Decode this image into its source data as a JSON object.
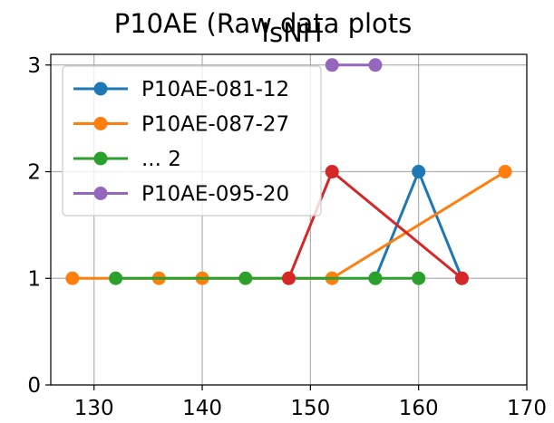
{
  "chart_data": {
    "type": "line",
    "title": "P10AE (Raw data plots",
    "subtitle": "IsNH",
    "xlabel": "",
    "ylabel": "",
    "xlim": [
      126,
      170
    ],
    "ylim": [
      0,
      3.1
    ],
    "xticks": [
      130,
      140,
      150,
      160,
      170
    ],
    "yticks": [
      0,
      1,
      2,
      3
    ],
    "grid": true,
    "legend_position": "upper-left",
    "legend": [
      "P10AE-081-12",
      "P10AE-087-27",
      "... 2",
      "P10AE-095-20"
    ],
    "series": [
      {
        "name": "P10AE-081-12",
        "color": "#1f77b4",
        "x": [
          156,
          160,
          164
        ],
        "y": [
          1,
          2,
          1
        ]
      },
      {
        "name": "P10AE-087-27",
        "color": "#ff7f0e",
        "x": [
          128,
          136,
          140,
          148,
          152,
          168
        ],
        "y": [
          1,
          1,
          1,
          1,
          1,
          2
        ]
      },
      {
        "name": "... 2",
        "color": "#2ca02c",
        "x": [
          132,
          144,
          156,
          160
        ],
        "y": [
          1,
          1,
          1,
          1
        ]
      },
      {
        "name": "",
        "color": "#d62728",
        "x": [
          148,
          152,
          164
        ],
        "y": [
          1,
          2,
          1
        ]
      },
      {
        "name": "P10AE-095-20",
        "color": "#9467bd",
        "x": [
          152,
          156
        ],
        "y": [
          3,
          3
        ]
      }
    ]
  }
}
